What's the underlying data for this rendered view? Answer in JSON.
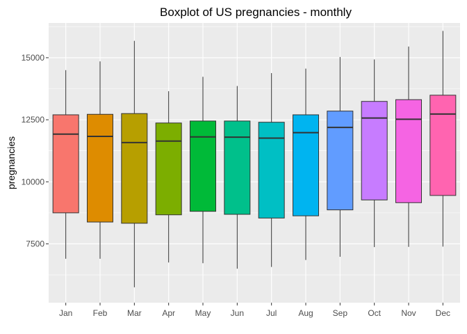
{
  "chart_data": {
    "type": "boxplot",
    "title": "Boxplot of US pregnancies - monthly",
    "xlabel": "",
    "ylabel": "pregnancies",
    "ylim": [
      5130,
      16400
    ],
    "yticks": [
      7500,
      10000,
      12500,
      15000
    ],
    "ytick_labels": [
      "7500",
      "10000",
      "12500",
      "15000"
    ],
    "grid": true,
    "legend": "none",
    "categories": [
      "Jan",
      "Feb",
      "Mar",
      "Apr",
      "May",
      "Jun",
      "Jul",
      "Aug",
      "Sep",
      "Oct",
      "Nov",
      "Dec"
    ],
    "series": [
      {
        "min": 6900,
        "q1": 8750,
        "median": 11920,
        "q3": 12700,
        "max": 14500,
        "color": "#F8766D"
      },
      {
        "min": 6900,
        "q1": 8380,
        "median": 11830,
        "q3": 12720,
        "max": 14850,
        "color": "#DE8C00"
      },
      {
        "min": 5750,
        "q1": 8330,
        "median": 11580,
        "q3": 12750,
        "max": 15680,
        "color": "#B79F00"
      },
      {
        "min": 6750,
        "q1": 8670,
        "median": 11640,
        "q3": 12370,
        "max": 13650,
        "color": "#7CAE00"
      },
      {
        "min": 6720,
        "q1": 8810,
        "median": 11810,
        "q3": 12450,
        "max": 14230,
        "color": "#00BA38"
      },
      {
        "min": 6500,
        "q1": 8690,
        "median": 11800,
        "q3": 12450,
        "max": 13860,
        "color": "#00C08B"
      },
      {
        "min": 6570,
        "q1": 8540,
        "median": 11760,
        "q3": 12400,
        "max": 14380,
        "color": "#00BFC4"
      },
      {
        "min": 6850,
        "q1": 8630,
        "median": 11980,
        "q3": 12700,
        "max": 14560,
        "color": "#00B4F0"
      },
      {
        "min": 6980,
        "q1": 8870,
        "median": 12190,
        "q3": 12850,
        "max": 15030,
        "color": "#619CFF"
      },
      {
        "min": 7370,
        "q1": 9270,
        "median": 12570,
        "q3": 13240,
        "max": 14930,
        "color": "#C77CFF"
      },
      {
        "min": 7380,
        "q1": 9160,
        "median": 12520,
        "q3": 13310,
        "max": 15450,
        "color": "#F564E3"
      },
      {
        "min": 7390,
        "q1": 9450,
        "median": 12730,
        "q3": 13490,
        "max": 16080,
        "color": "#FF64B0"
      }
    ]
  }
}
